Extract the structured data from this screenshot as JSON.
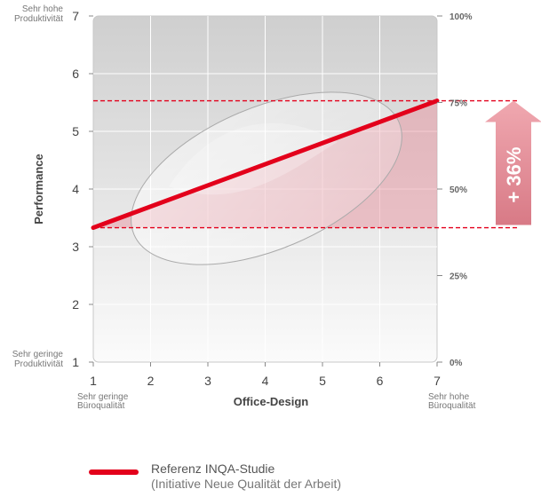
{
  "chart_data": {
    "type": "line",
    "xlabel": "Office-Design",
    "ylabel": "Performance",
    "xlim": [
      1,
      7
    ],
    "ylim": [
      1,
      7
    ],
    "x_ticks": [
      "1",
      "2",
      "3",
      "4",
      "5",
      "6",
      "7"
    ],
    "y_ticks": [
      "1",
      "2",
      "3",
      "4",
      "5",
      "6",
      "7"
    ],
    "y2_ticks": [
      "0%",
      "25%",
      "50%",
      "75%",
      "100%"
    ],
    "x_min_label": [
      "Sehr geringe",
      "Büroqualität"
    ],
    "x_max_label": [
      "Sehr hohe",
      "Büroqualität"
    ],
    "y_min_label": [
      "Sehr geringe",
      "Produktivität"
    ],
    "y_max_label": [
      "Sehr hohe",
      "Produktivität"
    ],
    "series": [
      {
        "name": "Referenz INQA-Studie",
        "x": [
          1,
          7
        ],
        "y": [
          3.33,
          5.53
        ],
        "color": "#e3001b"
      }
    ],
    "reference_levels": [
      3.33,
      5.53
    ],
    "annotation": "+ 36%",
    "grid": true,
    "legend": {
      "position": "bottom",
      "line1": "Referenz INQA-Studie",
      "line2": "(Initiative Neue Qualität der Arbeit)"
    }
  }
}
